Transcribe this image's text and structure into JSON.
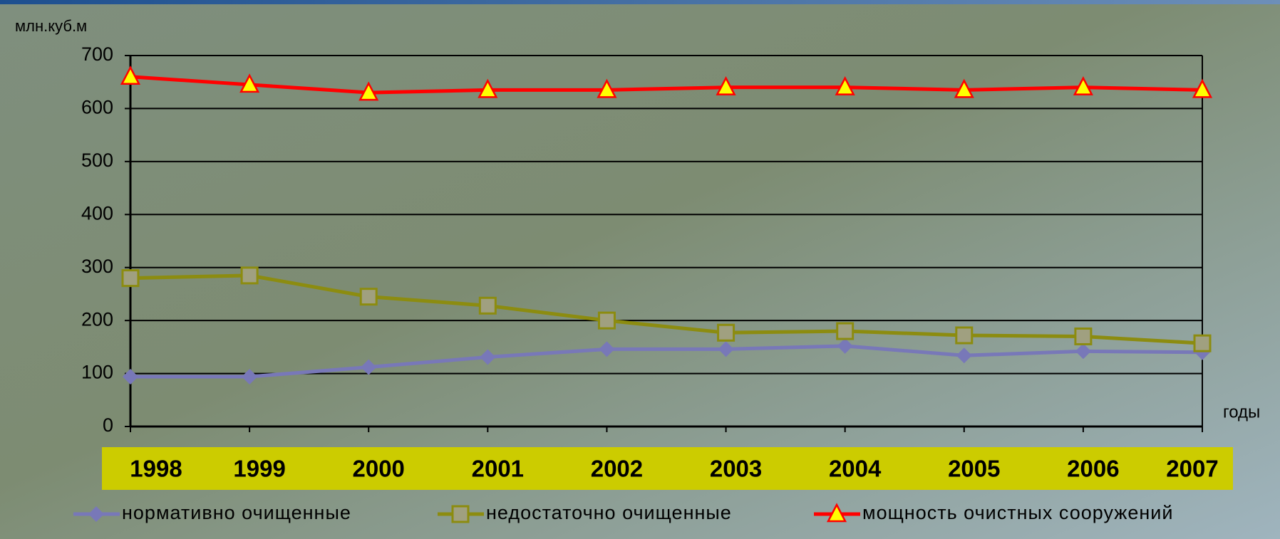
{
  "chart_data": {
    "type": "line",
    "y_label": "млн.куб.м",
    "x_label": "годы",
    "categories": [
      "1998",
      "1999",
      "2000",
      "2001",
      "2002",
      "2003",
      "2004",
      "2005",
      "2006",
      "2007"
    ],
    "series": [
      {
        "name": "нормативно очищенные",
        "color": "#7878b8",
        "marker": "diamond",
        "values": [
          94,
          94,
          112,
          131,
          146,
          146,
          152,
          134,
          142,
          140
        ]
      },
      {
        "name": "недостаточно очищенные",
        "color": "#8c8c10",
        "marker": "square",
        "values": [
          280,
          285,
          245,
          228,
          200,
          177,
          180,
          172,
          170,
          157
        ]
      },
      {
        "name": "мощность очистных сооружений",
        "color": "#ff0000",
        "marker": "triangle",
        "values": [
          660,
          645,
          630,
          635,
          635,
          640,
          640,
          635,
          640,
          635
        ]
      }
    ],
    "ylim": [
      0,
      700
    ],
    "yticks": [
      0,
      100,
      200,
      300,
      400,
      500,
      600,
      700
    ],
    "grid": true
  }
}
